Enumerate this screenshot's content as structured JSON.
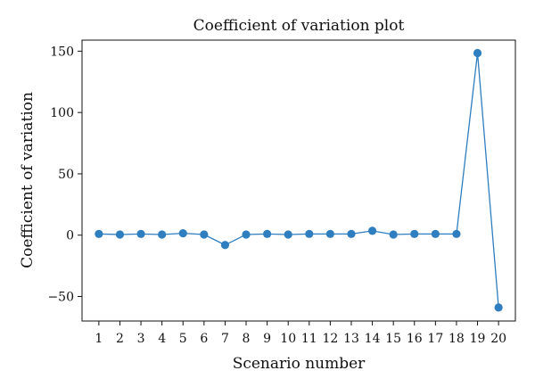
{
  "chart_data": {
    "type": "line",
    "title": "Coefficient of variation plot",
    "xlabel": "Scenario number",
    "ylabel": "Coefficient of variation",
    "x": [
      1,
      2,
      3,
      4,
      5,
      6,
      7,
      8,
      9,
      10,
      11,
      12,
      13,
      14,
      15,
      16,
      17,
      18,
      19,
      20
    ],
    "series": [
      {
        "values": [
          1.0,
          0.5,
          1.0,
          0.5,
          1.5,
          0.5,
          -8.0,
          0.5,
          1.0,
          0.5,
          1.0,
          1.0,
          1.0,
          3.5,
          0.5,
          1.0,
          1.0,
          1.0,
          148.5,
          -59.0
        ],
        "color": "#2f7ebf"
      }
    ],
    "xticks": [
      "1",
      "2",
      "3",
      "4",
      "5",
      "6",
      "7",
      "8",
      "9",
      "10",
      "11",
      "12",
      "13",
      "14",
      "15",
      "16",
      "17",
      "18",
      "19",
      "20"
    ],
    "yticks": [
      -50,
      0,
      50,
      100,
      150
    ],
    "ytick_labels": [
      "−50",
      "0",
      "50",
      "100",
      "150"
    ],
    "xlim": [
      0.2,
      20.8
    ],
    "ylim": [
      -70,
      159
    ],
    "grid": false,
    "legend": "none"
  }
}
